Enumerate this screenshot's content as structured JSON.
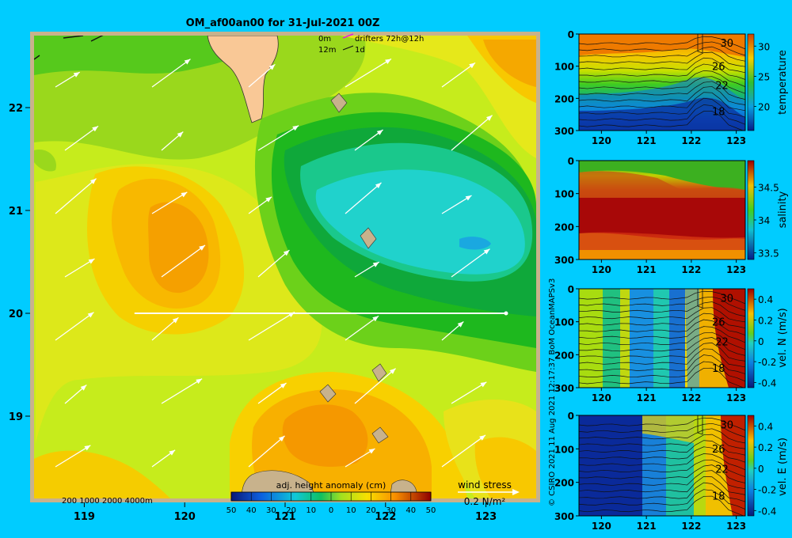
{
  "colors": {
    "background": "#00ccff",
    "land": "#f9c896",
    "frame": "#c8b28c"
  },
  "main_map": {
    "title": "OM_af00an00 for 31-Jul-2021 00Z",
    "x_ticks": [
      119,
      120,
      121,
      122,
      123
    ],
    "y_ticks": [
      19,
      20,
      21,
      22
    ],
    "x_range": [
      118.5,
      123.5
    ],
    "y_range": [
      18.2,
      22.7
    ],
    "legend": {
      "line1_depth": "0m",
      "line1_label": "drifters 72h@12h",
      "line2_depth": "12m",
      "line2_label": "1d"
    },
    "isobaths_label": "200  1000  2000  4000m",
    "colorbar": {
      "label": "adj. height anomaly (cm)",
      "ticks": [
        "50",
        "40",
        "30",
        "20",
        "10",
        "0",
        "10",
        "20",
        "30",
        "40",
        "50"
      ],
      "range": [
        -50,
        50
      ]
    },
    "wind_stress": {
      "label": "wind stress",
      "unit_label": "0.2 N/m²",
      "reference_value": 0.2
    },
    "transect_latitude": 20,
    "transect_lon_range": [
      119.5,
      123.2
    ]
  },
  "credit": "© CSIRO 2021   11 Aug 2021 12:17:37 BoM OceanMAPSv3",
  "chart_data": [
    {
      "type": "heatmap",
      "title": "adj. height anomaly (cm)",
      "xlabel": "",
      "ylabel": "",
      "xlim": [
        118.5,
        123.5
      ],
      "ylim": [
        18.2,
        22.7
      ],
      "features": [
        {
          "name": "high",
          "lon": 119.9,
          "lat": 20.8,
          "value": 30
        },
        {
          "name": "low",
          "lon": 122.3,
          "lat": 20.8,
          "value": -15
        },
        {
          "name": "high",
          "lon": 121.5,
          "lat": 18.9,
          "value": 30
        },
        {
          "name": "high",
          "lon": 123.3,
          "lat": 22.2,
          "value": 25
        }
      ]
    },
    {
      "type": "heatmap",
      "xlabel": "",
      "ylabel": "temperature",
      "x_ticks": [
        120,
        121,
        122,
        123
      ],
      "y_ticks": [
        0,
        100,
        200,
        300
      ],
      "cbar_ticks": [
        20,
        25,
        30
      ],
      "contour_labels": [
        "30",
        "26",
        "22",
        "18"
      ],
      "xlim": [
        119.5,
        123.2
      ],
      "ylim": [
        300,
        0
      ]
    },
    {
      "type": "heatmap",
      "xlabel": "",
      "ylabel": "salinity",
      "x_ticks": [
        120,
        121,
        122,
        123
      ],
      "y_ticks": [
        0,
        100,
        200,
        300
      ],
      "cbar_ticks": [
        33.5,
        34,
        34.5
      ],
      "xlim": [
        119.5,
        123.2
      ],
      "ylim": [
        300,
        0
      ]
    },
    {
      "type": "heatmap",
      "xlabel": "",
      "ylabel": "vel. N (m/s)",
      "x_ticks": [
        120,
        121,
        122,
        123
      ],
      "y_ticks": [
        0,
        100,
        200,
        300
      ],
      "cbar_ticks": [
        -0.4,
        -0.2,
        0,
        0.2,
        0.4
      ],
      "contour_labels": [
        "30",
        "26",
        "22",
        "18"
      ],
      "xlim": [
        119.5,
        123.2
      ],
      "ylim": [
        300,
        0
      ]
    },
    {
      "type": "heatmap",
      "xlabel": "",
      "ylabel": "vel. E (m/s)",
      "x_ticks": [
        120,
        121,
        122,
        123
      ],
      "y_ticks": [
        0,
        100,
        200,
        300
      ],
      "cbar_ticks": [
        -0.4,
        -0.2,
        0,
        0.2,
        0.4
      ],
      "contour_labels": [
        "30",
        "26",
        "22",
        "18"
      ],
      "xlim": [
        119.5,
        123.2
      ],
      "ylim": [
        300,
        0
      ]
    }
  ]
}
